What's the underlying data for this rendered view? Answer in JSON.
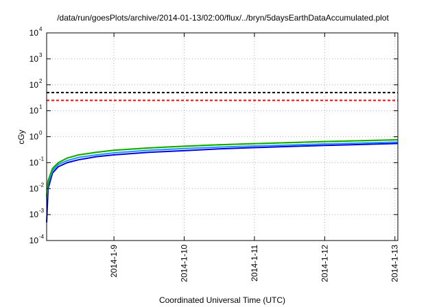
{
  "chart_data": {
    "type": "line",
    "title": "/data/run/goesPlots/archive/2014-01-13/02:00/flux/../bryn/5daysEarthDataAccumulated.plot",
    "xlabel": "Coordinated Universal Time (UTC)",
    "ylabel": "cGy",
    "yscale": "log",
    "ylim": [
      0.0001,
      10000
    ],
    "y_ticks": [
      {
        "base": "10",
        "exp": "-4",
        "value": 0.0001
      },
      {
        "base": "10",
        "exp": "-3",
        "value": 0.001
      },
      {
        "base": "10",
        "exp": "-2",
        "value": 0.01
      },
      {
        "base": "10",
        "exp": "-1",
        "value": 0.1
      },
      {
        "base": "10",
        "exp": "0",
        "value": 1
      },
      {
        "base": "10",
        "exp": "1",
        "value": 10
      },
      {
        "base": "10",
        "exp": "2",
        "value": 100
      },
      {
        "base": "10",
        "exp": "3",
        "value": 1000
      },
      {
        "base": "10",
        "exp": "4",
        "value": 10000
      }
    ],
    "xlim": [
      "2014-01-08T01:00",
      "2014-01-13T01:00"
    ],
    "x_ticks": [
      {
        "label": "2014-1-9",
        "value": "2014-01-09T00:00"
      },
      {
        "label": "2014-1-10",
        "value": "2014-01-10T00:00"
      },
      {
        "label": "2014-1-11",
        "value": "2014-01-11T00:00"
      },
      {
        "label": "2014-1-12",
        "value": "2014-01-12T00:00"
      },
      {
        "label": "2014-1-13",
        "value": "2014-01-13T00:00"
      }
    ],
    "grid": true,
    "legend": "none",
    "series": [
      {
        "color": "#00b000",
        "x": [
          "2014-01-08T01:00",
          "2014-01-08T01:30",
          "2014-01-08T03:00",
          "2014-01-08T05:00",
          "2014-01-08T08:00",
          "2014-01-08T12:00",
          "2014-01-08T18:00",
          "2014-01-09T00:00",
          "2014-01-09T12:00",
          "2014-01-10T00:00",
          "2014-01-10T12:00",
          "2014-01-11T00:00",
          "2014-01-11T12:00",
          "2014-01-12T00:00",
          "2014-01-12T12:00",
          "2014-01-13T01:00"
        ],
        "y": [
          0.005,
          0.02,
          0.06,
          0.1,
          0.15,
          0.2,
          0.25,
          0.3,
          0.37,
          0.43,
          0.49,
          0.54,
          0.59,
          0.65,
          0.7,
          0.76
        ]
      },
      {
        "color": "#ff8c00",
        "x": [
          "2014-01-08T01:00",
          "2014-01-08T01:30",
          "2014-01-08T03:00",
          "2014-01-08T05:00",
          "2014-01-08T08:00",
          "2014-01-08T12:00",
          "2014-01-08T18:00",
          "2014-01-09T00:00",
          "2014-01-09T12:00",
          "2014-01-10T00:00",
          "2014-01-10T12:00",
          "2014-01-11T00:00",
          "2014-01-11T12:00",
          "2014-01-12T00:00",
          "2014-01-12T12:00",
          "2014-01-13T01:00"
        ],
        "y": [
          0.005,
          0.02,
          0.06,
          0.1,
          0.15,
          0.2,
          0.25,
          0.3,
          0.37,
          0.43,
          0.49,
          0.54,
          0.59,
          0.65,
          0.7,
          0.76
        ]
      },
      {
        "color": "#1e90ff",
        "x": [
          "2014-01-08T01:00",
          "2014-01-08T01:30",
          "2014-01-08T03:00",
          "2014-01-08T05:00",
          "2014-01-08T08:00",
          "2014-01-08T12:00",
          "2014-01-08T18:00",
          "2014-01-09T00:00",
          "2014-01-09T12:00",
          "2014-01-10T00:00",
          "2014-01-10T12:00",
          "2014-01-11T00:00",
          "2014-01-11T12:00",
          "2014-01-12T00:00",
          "2014-01-12T12:00",
          "2014-01-13T01:00"
        ],
        "y": [
          0.004,
          0.016,
          0.05,
          0.085,
          0.12,
          0.16,
          0.2,
          0.24,
          0.3,
          0.35,
          0.4,
          0.44,
          0.48,
          0.53,
          0.57,
          0.62
        ]
      },
      {
        "color": "#0000dd",
        "x": [
          "2014-01-08T01:00",
          "2014-01-08T01:30",
          "2014-01-08T03:00",
          "2014-01-08T05:00",
          "2014-01-08T08:00",
          "2014-01-08T12:00",
          "2014-01-08T18:00",
          "2014-01-09T00:00",
          "2014-01-09T12:00",
          "2014-01-10T00:00",
          "2014-01-10T12:00",
          "2014-01-11T00:00",
          "2014-01-11T12:00",
          "2014-01-12T00:00",
          "2014-01-12T12:00",
          "2014-01-13T01:00"
        ],
        "y": [
          0.0005,
          0.01,
          0.04,
          0.07,
          0.1,
          0.13,
          0.17,
          0.2,
          0.25,
          0.29,
          0.34,
          0.38,
          0.42,
          0.46,
          0.5,
          0.55
        ]
      }
    ],
    "reference_lines": [
      {
        "y": 50,
        "color": "#000000",
        "style": "dashed"
      },
      {
        "y": 25,
        "color": "#ff0000",
        "style": "dashed"
      }
    ]
  }
}
